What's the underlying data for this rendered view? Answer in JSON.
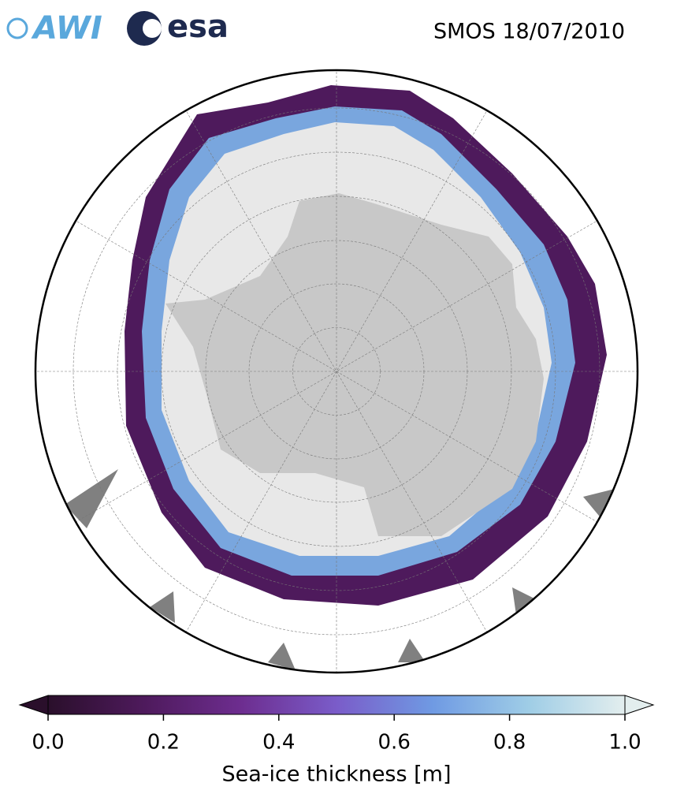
{
  "title": "SMOS 18/07/2010",
  "logos": [
    "AWI",
    "esa"
  ],
  "colorbar": {
    "label": "Sea-ice thickness [m]",
    "lim": [
      0,
      1
    ],
    "ticks": [
      {
        "value": 0,
        "label": "0.0"
      },
      0.2,
      0.4,
      0.6,
      0.8,
      {
        "value": 1,
        "label": "1.0"
      }
    ],
    "colors": [
      "#2a0f2b",
      "#4e1a5c",
      "#6d2d8f",
      "#7a5cc9",
      "#6f9ae3",
      "#9fcde6",
      "#e3eeee"
    ]
  }
}
